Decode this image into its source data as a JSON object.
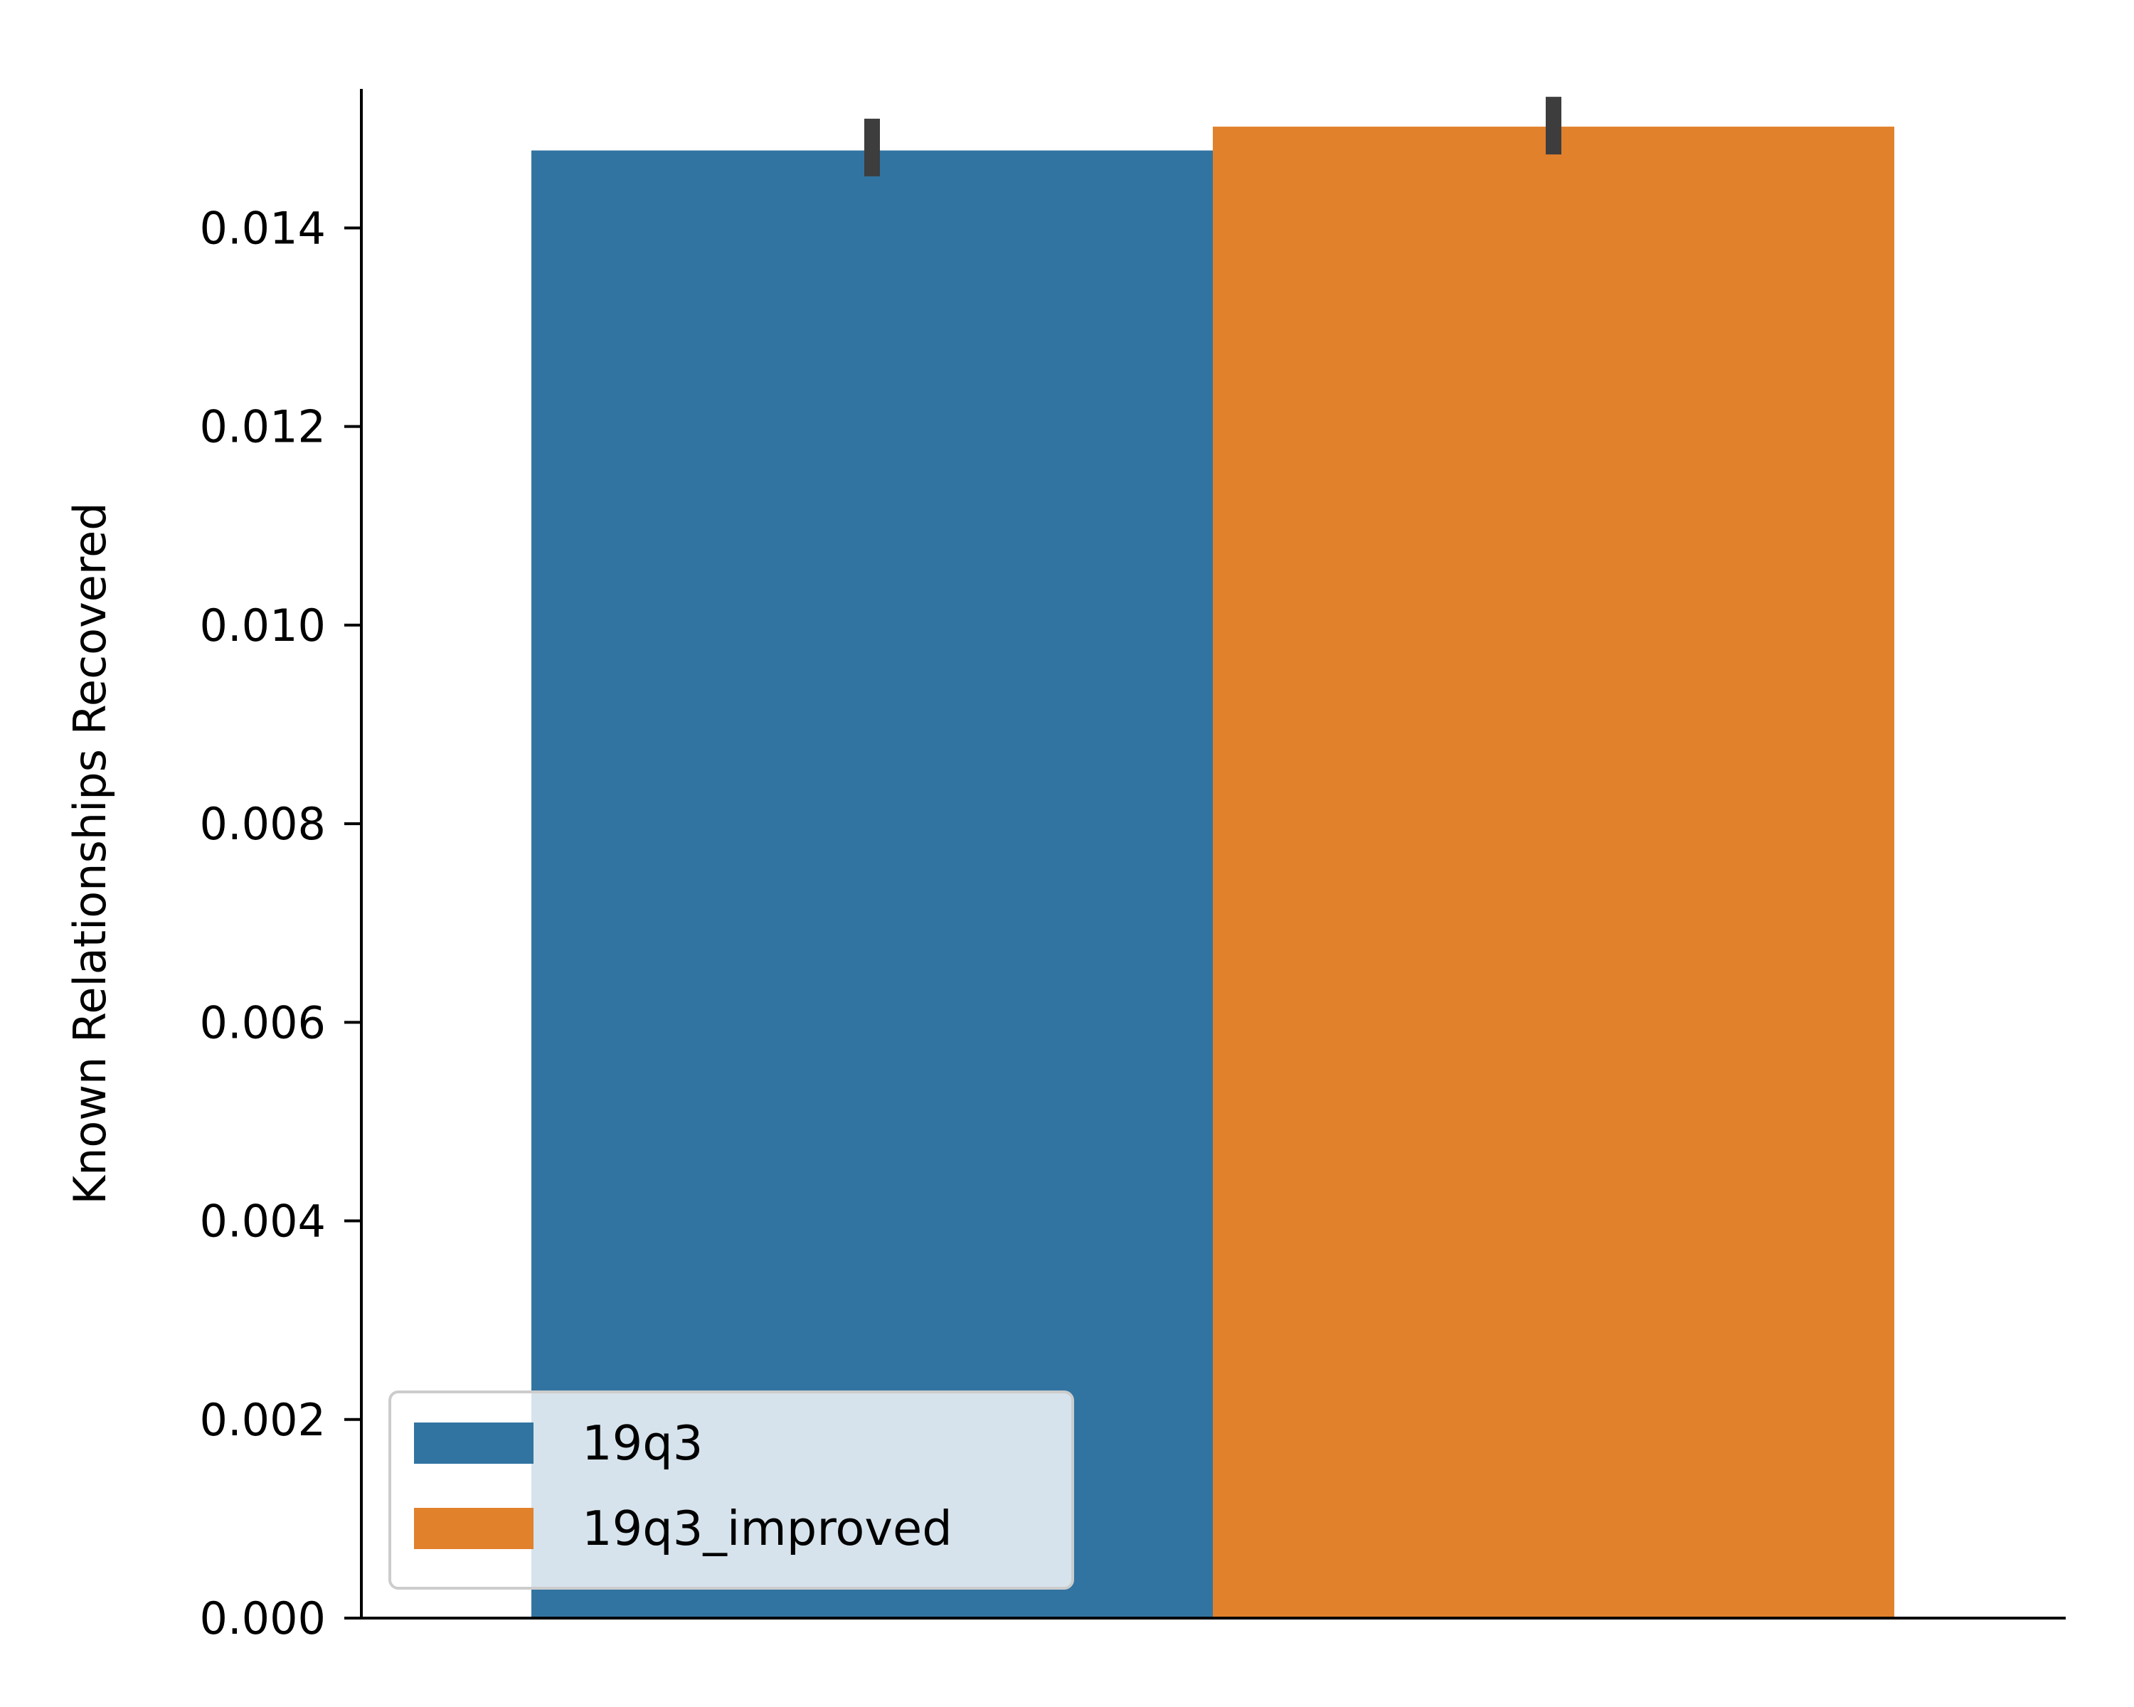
{
  "chart_data": {
    "type": "bar",
    "title": "",
    "xlabel": "",
    "ylabel": "Known Relationships Recovered",
    "ylim": [
      0,
      0.016
    ],
    "yticks": [
      "0.000",
      "0.002",
      "0.004",
      "0.006",
      "0.008",
      "0.010",
      "0.012",
      "0.014"
    ],
    "grid": false,
    "legend_position": "lower-left",
    "series": [
      {
        "name": "19q3",
        "value": 0.01478,
        "err_low": 0.01452,
        "err_high": 0.0151,
        "color": "#3274a1"
      },
      {
        "name": "19q3_improved",
        "value": 0.01502,
        "err_low": 0.01474,
        "err_high": 0.01532,
        "color": "#e1812c"
      }
    ],
    "errorbar_color": "#3d3d3d"
  }
}
